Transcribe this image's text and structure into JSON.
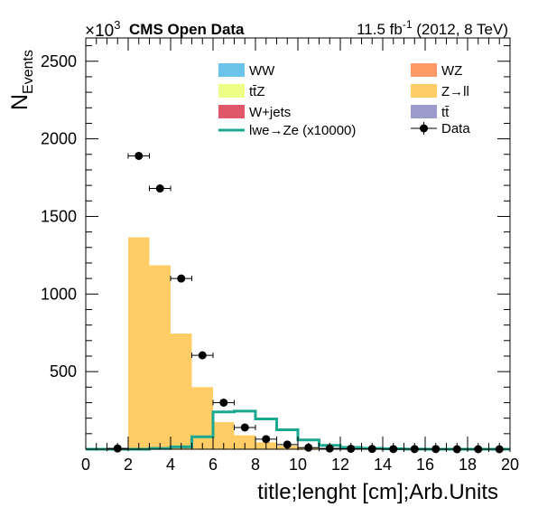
{
  "header": {
    "multiplier_base": "×10",
    "multiplier_exp": "3",
    "experiment": "CMS Open Data",
    "lumi_value": "11.5 fb",
    "lumi_exp": "-1",
    "lumi_rest": " (2012, 8 TeV)"
  },
  "axes": {
    "ylabel_main": "N",
    "ylabel_sub": "Events",
    "xlabel": "title;lenght [cm];Arb.Units"
  },
  "legend": {
    "ww": "WW",
    "wz": "WZ",
    "ttz": "tt̄Z",
    "zll": "Z→ll",
    "wjets": "W+jets",
    "tt": "tt̄",
    "signal": "lwe→Ze (x10000)",
    "data": "Data"
  },
  "colors": {
    "ww": "#6bc3ea",
    "wz": "#ff9966",
    "ttz": "#eeff88",
    "zll": "#ffcc66",
    "wjets": "#e0576a",
    "tt": "#9c9ccc",
    "signal": "#1aa891",
    "data": "#000000"
  },
  "chart_data": {
    "type": "bar",
    "xlim": [
      0,
      20
    ],
    "ylim": [
      0,
      2650
    ],
    "y_multiplier": "×10^3",
    "xticks": [
      "0",
      "2",
      "4",
      "6",
      "8",
      "10",
      "12",
      "14",
      "16",
      "18",
      "20"
    ],
    "yticks": [
      "500",
      "1000",
      "1500",
      "2000",
      "2500"
    ],
    "bin_edges": [
      0,
      1,
      2,
      3,
      4,
      5,
      6,
      7,
      8,
      9,
      10,
      11,
      12,
      13,
      14,
      15,
      16,
      17,
      18,
      19,
      20
    ],
    "zll_values": [
      0,
      0,
      1365,
      1185,
      745,
      400,
      175,
      90,
      45,
      22,
      12,
      6,
      3,
      2,
      1,
      1,
      0,
      0,
      0,
      0
    ],
    "signal_values": [
      0,
      0,
      0,
      5,
      15,
      80,
      240,
      245,
      195,
      125,
      60,
      25,
      12,
      6,
      3,
      1,
      0,
      0,
      0,
      0
    ],
    "data_points": [
      {
        "x": 1.5,
        "y": 5
      },
      {
        "x": 2.5,
        "y": 1890
      },
      {
        "x": 3.5,
        "y": 1680
      },
      {
        "x": 4.5,
        "y": 1100
      },
      {
        "x": 5.5,
        "y": 605
      },
      {
        "x": 6.5,
        "y": 300
      },
      {
        "x": 7.5,
        "y": 140
      },
      {
        "x": 8.5,
        "y": 65
      },
      {
        "x": 9.5,
        "y": 30
      },
      {
        "x": 10.5,
        "y": 10
      },
      {
        "x": 11.5,
        "y": 5
      },
      {
        "x": 12.5,
        "y": 3
      },
      {
        "x": 13.5,
        "y": 2
      },
      {
        "x": 14.5,
        "y": 1
      },
      {
        "x": 15.5,
        "y": 1
      },
      {
        "x": 16.5,
        "y": 1
      },
      {
        "x": 17.5,
        "y": 0
      },
      {
        "x": 18.5,
        "y": 0
      },
      {
        "x": 19.5,
        "y": 0
      }
    ]
  }
}
